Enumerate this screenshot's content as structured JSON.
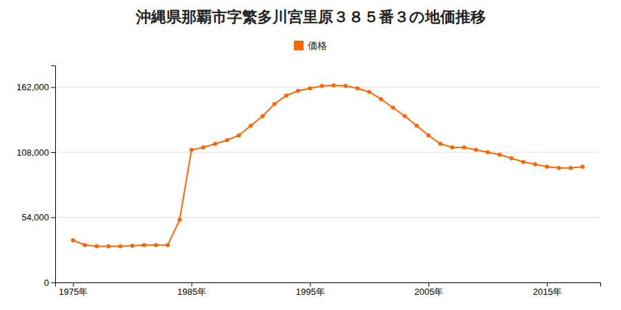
{
  "chart_data": {
    "type": "line",
    "title": "沖縄県那覇市字繁多川宮里原３８５番３の地価推移",
    "x": [
      1975,
      1976,
      1977,
      1978,
      1979,
      1980,
      1981,
      1982,
      1983,
      1984,
      1985,
      1986,
      1987,
      1988,
      1989,
      1990,
      1991,
      1992,
      1993,
      1994,
      1995,
      1996,
      1997,
      1998,
      1999,
      2000,
      2001,
      2002,
      2003,
      2004,
      2005,
      2006,
      2007,
      2008,
      2009,
      2010,
      2011,
      2012,
      2013,
      2014,
      2015,
      2016,
      2017,
      2018
    ],
    "series": [
      {
        "name": "価格",
        "color": "#FF6600",
        "marker": "circle",
        "values": [
          35000,
          31000,
          30000,
          30000,
          30000,
          30500,
          31000,
          31000,
          31000,
          52000,
          110000,
          112000,
          115000,
          118000,
          122000,
          130000,
          138000,
          148000,
          155000,
          159000,
          161000,
          163000,
          163500,
          163000,
          161000,
          158000,
          152000,
          145000,
          138000,
          130000,
          122000,
          115000,
          112000,
          112000,
          110000,
          108000,
          106000,
          103000,
          100000,
          98000,
          96000,
          95000,
          95000,
          96000
        ]
      }
    ],
    "xlim": [
      1973.5,
      2019.5
    ],
    "xticks": [
      {
        "value": 1975,
        "label": "1975年"
      },
      {
        "value": 1985,
        "label": "1985年"
      },
      {
        "value": 1995,
        "label": "1995年"
      },
      {
        "value": 2005,
        "label": "2005年"
      },
      {
        "value": 2015,
        "label": "2015年"
      }
    ],
    "ylim": [
      0,
      180000
    ],
    "yticks": [
      0,
      {
        "value": 54000,
        "label": "54,000"
      },
      {
        "value": 108000,
        "label": "108,000"
      },
      {
        "value": 162000,
        "label": "162,000"
      }
    ],
    "grid": true,
    "legend": "top"
  }
}
